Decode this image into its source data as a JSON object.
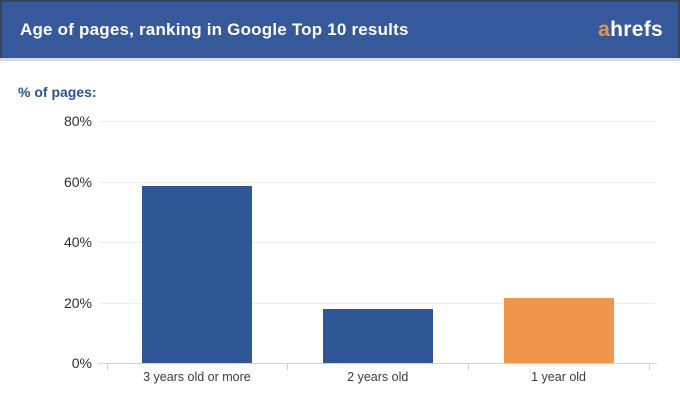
{
  "header": {
    "title": "Age of pages, ranking in Google Top 10 results",
    "logo_accent": "a",
    "logo_rest": "hrefs"
  },
  "chart_data": {
    "type": "bar",
    "title": "Age of pages, ranking in Google Top 10 results",
    "ylabel": "% of pages:",
    "xlabel": "",
    "categories": [
      "3 years old or more",
      "2 years old",
      "1 year old"
    ],
    "values": [
      58.5,
      18,
      21.5
    ],
    "bar_colors": [
      "#2F5795",
      "#2F5795",
      "#F0954C"
    ],
    "ylim": [
      0,
      80
    ],
    "ytick_values": [
      0,
      20,
      40,
      60,
      80
    ],
    "ytick_labels": [
      "0%",
      "20%",
      "40%",
      "60%",
      "80%"
    ],
    "grid": true,
    "legend": false
  },
  "colors": {
    "header_bg": "#35599B",
    "header_border": "#39445C",
    "title_text": "#FFFFFF",
    "logo_text": "#FFFFFF",
    "logo_accent_orange": "#EF9041",
    "bar_blue": "#2F5795",
    "bar_orange": "#F0954C",
    "ylabel_blue": "#2B5394",
    "axis_text": "#2E2E2E",
    "gridline": "#ECECEC",
    "axis_line": "#D2D2D2"
  }
}
